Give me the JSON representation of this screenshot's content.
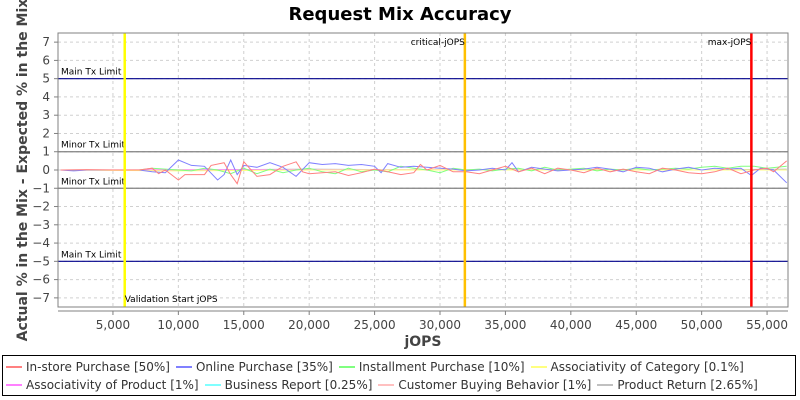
{
  "chart_data": {
    "type": "line",
    "title": "Request Mix Accuracy",
    "xlabel": "jOPS",
    "ylabel": "Actual % in the Mix - Expected % in the Mix",
    "xlim": [
      800,
      56600
    ],
    "ylim": [
      -7.5,
      7.5
    ],
    "x_ticks": [
      "5,000",
      "10,000",
      "15,000",
      "20,000",
      "25,000",
      "30,000",
      "35,000",
      "40,000",
      "45,000",
      "50,000",
      "55,000"
    ],
    "x_tick_values": [
      5000,
      10000,
      15000,
      20000,
      25000,
      30000,
      35000,
      40000,
      45000,
      50000,
      55000
    ],
    "y_ticks": [
      "7",
      "6",
      "5",
      "4",
      "3",
      "2",
      "1",
      "0",
      "-1",
      "-2",
      "-3",
      "-4",
      "-5",
      "-6",
      "-7"
    ],
    "y_tick_values": [
      7,
      6,
      5,
      4,
      3,
      2,
      1,
      0,
      -1,
      -2,
      -3,
      -4,
      -5,
      -6,
      -7
    ],
    "grid": true,
    "legend_position": "bottom",
    "horizontal_markers": [
      {
        "label": "Main Tx Limit",
        "value": 5,
        "color": "#00008b"
      },
      {
        "label": "Minor Tx Limit",
        "value": 1,
        "color": "#808080"
      },
      {
        "label": "Minor Tx Limit",
        "value": -1,
        "color": "#808080"
      },
      {
        "label": "Main Tx Limit",
        "value": -5,
        "color": "#00008b"
      }
    ],
    "vertical_markers": [
      {
        "label": "Validation Start jOPS",
        "value": 5900,
        "color": "#ffff00"
      },
      {
        "label": "critical-jOPS",
        "value": 31900,
        "color": "#ffc000"
      },
      {
        "label": "max-jOPS",
        "value": 53800,
        "color": "#ff0000"
      }
    ],
    "series": [
      {
        "name": "In-store Purchase [50%]",
        "color": "#ff8080",
        "points": [
          [
            1000,
            0
          ],
          [
            3000,
            0.02
          ],
          [
            5000,
            0
          ],
          [
            7000,
            0
          ],
          [
            8000,
            0.1
          ],
          [
            8500,
            -0.2
          ],
          [
            9000,
            0
          ],
          [
            10000,
            -0.55
          ],
          [
            10500,
            -0.25
          ],
          [
            12000,
            -0.25
          ],
          [
            12500,
            0.25
          ],
          [
            13500,
            0.4
          ],
          [
            14000,
            -0.25
          ],
          [
            14500,
            -0.75
          ],
          [
            15000,
            0.45
          ],
          [
            16000,
            -0.35
          ],
          [
            17000,
            -0.25
          ],
          [
            18000,
            0.2
          ],
          [
            19000,
            0.45
          ],
          [
            19500,
            -0.1
          ],
          [
            20000,
            -0.2
          ],
          [
            21000,
            -0.15
          ],
          [
            22000,
            -0.1
          ],
          [
            23000,
            -0.3
          ],
          [
            24000,
            -0.15
          ],
          [
            25000,
            0.05
          ],
          [
            26000,
            -0.1
          ],
          [
            27000,
            -0.25
          ],
          [
            28000,
            -0.15
          ],
          [
            28500,
            0.3
          ],
          [
            29000,
            0
          ],
          [
            30000,
            0.25
          ],
          [
            31000,
            -0.1
          ],
          [
            32000,
            -0.1
          ],
          [
            33000,
            -0.2
          ],
          [
            34000,
            0
          ],
          [
            35000,
            0.2
          ],
          [
            36000,
            -0.1
          ],
          [
            37000,
            0.1
          ],
          [
            38000,
            -0.2
          ],
          [
            39000,
            0.1
          ],
          [
            40000,
            0
          ],
          [
            41000,
            -0.15
          ],
          [
            42000,
            0.1
          ],
          [
            43000,
            -0.1
          ],
          [
            44000,
            0.05
          ],
          [
            45000,
            -0.1
          ],
          [
            46000,
            -0.2
          ],
          [
            47000,
            0.1
          ],
          [
            48000,
            0
          ],
          [
            49000,
            -0.15
          ],
          [
            50000,
            -0.2
          ],
          [
            51000,
            -0.1
          ],
          [
            52000,
            0.1
          ],
          [
            53000,
            -0.2
          ],
          [
            54000,
            0
          ],
          [
            55000,
            0.1
          ],
          [
            55500,
            -0.1
          ],
          [
            56500,
            0.5
          ]
        ]
      },
      {
        "name": "Online Purchase [35%]",
        "color": "#8080ff",
        "points": [
          [
            1000,
            0
          ],
          [
            2000,
            -0.05
          ],
          [
            3000,
            0
          ],
          [
            7000,
            0
          ],
          [
            8000,
            -0.1
          ],
          [
            9000,
            -0.15
          ],
          [
            10000,
            0.55
          ],
          [
            11000,
            0.25
          ],
          [
            12000,
            0.2
          ],
          [
            13000,
            -0.55
          ],
          [
            13500,
            -0.25
          ],
          [
            14000,
            0.55
          ],
          [
            14500,
            -0.25
          ],
          [
            15000,
            0.25
          ],
          [
            16000,
            0.15
          ],
          [
            17000,
            0.4
          ],
          [
            18000,
            0.15
          ],
          [
            19000,
            -0.35
          ],
          [
            20000,
            0.4
          ],
          [
            21000,
            0.3
          ],
          [
            22000,
            0.35
          ],
          [
            23000,
            0.25
          ],
          [
            24000,
            0.3
          ],
          [
            25000,
            0.2
          ],
          [
            25500,
            -0.15
          ],
          [
            26000,
            0.35
          ],
          [
            27000,
            0.15
          ],
          [
            28000,
            0.2
          ],
          [
            29000,
            0.15
          ],
          [
            30000,
            0.1
          ],
          [
            31000,
            0.05
          ],
          [
            32000,
            -0.05
          ],
          [
            33000,
            0
          ],
          [
            34000,
            0.1
          ],
          [
            35000,
            0
          ],
          [
            35500,
            0.4
          ],
          [
            36000,
            -0.1
          ],
          [
            37000,
            0.15
          ],
          [
            38000,
            0.05
          ],
          [
            39000,
            -0.05
          ],
          [
            40000,
            0
          ],
          [
            41000,
            0.05
          ],
          [
            42000,
            0.15
          ],
          [
            43000,
            0.05
          ],
          [
            44000,
            -0.1
          ],
          [
            45000,
            0.15
          ],
          [
            46000,
            0.1
          ],
          [
            47000,
            -0.1
          ],
          [
            48000,
            0.05
          ],
          [
            49000,
            0.15
          ],
          [
            50000,
            0
          ],
          [
            51000,
            0.1
          ],
          [
            52000,
            0.05
          ],
          [
            53000,
            0.1
          ],
          [
            53800,
            -0.3
          ],
          [
            54500,
            0.1
          ],
          [
            55500,
            0
          ],
          [
            56500,
            -0.7
          ]
        ]
      },
      {
        "name": "Installment Purchase [10%]",
        "color": "#80ff80",
        "points": [
          [
            1000,
            0
          ],
          [
            7000,
            0
          ],
          [
            8000,
            0.1
          ],
          [
            9000,
            0.05
          ],
          [
            10000,
            0
          ],
          [
            11000,
            -0.05
          ],
          [
            12000,
            0.1
          ],
          [
            13000,
            0
          ],
          [
            14000,
            -0.2
          ],
          [
            15000,
            0.1
          ],
          [
            16000,
            -0.2
          ],
          [
            17000,
            0.05
          ],
          [
            18000,
            -0.15
          ],
          [
            19000,
            0
          ],
          [
            20000,
            0.1
          ],
          [
            21000,
            -0.1
          ],
          [
            22000,
            -0.2
          ],
          [
            23000,
            0.1
          ],
          [
            24000,
            -0.1
          ],
          [
            25000,
            0
          ],
          [
            26000,
            -0.1
          ],
          [
            27000,
            0.2
          ],
          [
            28000,
            0.1
          ],
          [
            29000,
            0
          ],
          [
            30000,
            -0.15
          ],
          [
            31000,
            0.1
          ],
          [
            32000,
            0
          ],
          [
            33000,
            0.05
          ],
          [
            34000,
            -0.05
          ],
          [
            35000,
            0.05
          ],
          [
            36000,
            0.1
          ],
          [
            37000,
            -0.05
          ],
          [
            38000,
            0.15
          ],
          [
            39000,
            0
          ],
          [
            40000,
            0.05
          ],
          [
            41000,
            0.1
          ],
          [
            42000,
            -0.05
          ],
          [
            43000,
            0.05
          ],
          [
            44000,
            0
          ],
          [
            45000,
            0.1
          ],
          [
            46000,
            0
          ],
          [
            47000,
            0.05
          ],
          [
            48000,
            0.1
          ],
          [
            49000,
            0.05
          ],
          [
            50000,
            0.15
          ],
          [
            51000,
            0.2
          ],
          [
            52000,
            0.1
          ],
          [
            53000,
            0.2
          ],
          [
            54000,
            0.2
          ],
          [
            55000,
            0.1
          ],
          [
            56500,
            0.2
          ]
        ]
      },
      {
        "name": "Associativity of Category [0.1%]",
        "color": "#ffff80",
        "points": [
          [
            1000,
            0
          ],
          [
            10000,
            -0.05
          ],
          [
            20000,
            0
          ],
          [
            30000,
            0
          ],
          [
            40000,
            0
          ],
          [
            50000,
            0
          ],
          [
            56500,
            0
          ]
        ]
      },
      {
        "name": "Associativity of Product [1%]",
        "color": "#ff80ff",
        "points": [
          [
            1000,
            0
          ],
          [
            10000,
            0
          ],
          [
            20000,
            0.02
          ],
          [
            30000,
            0
          ],
          [
            40000,
            0
          ],
          [
            50000,
            0
          ],
          [
            56500,
            0
          ]
        ]
      },
      {
        "name": "Business Report [0.25%]",
        "color": "#80ffff",
        "points": [
          [
            1000,
            0
          ],
          [
            10000,
            0
          ],
          [
            20000,
            0
          ],
          [
            30000,
            0
          ],
          [
            40000,
            0
          ],
          [
            50000,
            0
          ],
          [
            56500,
            0
          ]
        ]
      },
      {
        "name": "Customer Buying Behavior [1%]",
        "color": "#ffc0c0",
        "points": [
          [
            1000,
            0
          ],
          [
            10000,
            0.02
          ],
          [
            20000,
            0
          ],
          [
            30000,
            0.02
          ],
          [
            40000,
            0
          ],
          [
            50000,
            0
          ],
          [
            56500,
            0
          ]
        ]
      },
      {
        "name": "Product Return [2.65%]",
        "color": "#c0c0c0",
        "points": [
          [
            1000,
            0
          ],
          [
            10000,
            0
          ],
          [
            20000,
            0.05
          ],
          [
            30000,
            0
          ],
          [
            40000,
            0.03
          ],
          [
            50000,
            0
          ],
          [
            56500,
            0.05
          ]
        ]
      }
    ]
  },
  "legend": {
    "row1": [
      {
        "label": "In-store Purchase [50%]",
        "color": "#ff8080"
      },
      {
        "label": "Online Purchase [35%]",
        "color": "#8080ff"
      },
      {
        "label": "Installment Purchase [10%]",
        "color": "#80ff80"
      },
      {
        "label": "Associativity of Category [0.1%]",
        "color": "#ffff80"
      }
    ],
    "row2": [
      {
        "label": "Associativity of Product [1%]",
        "color": "#ff80ff"
      },
      {
        "label": "Business Report [0.25%]",
        "color": "#80ffff"
      },
      {
        "label": "Customer Buying Behavior [1%]",
        "color": "#ffc0c0"
      },
      {
        "label": "Product Return [2.65%]",
        "color": "#c0c0c0"
      }
    ]
  }
}
